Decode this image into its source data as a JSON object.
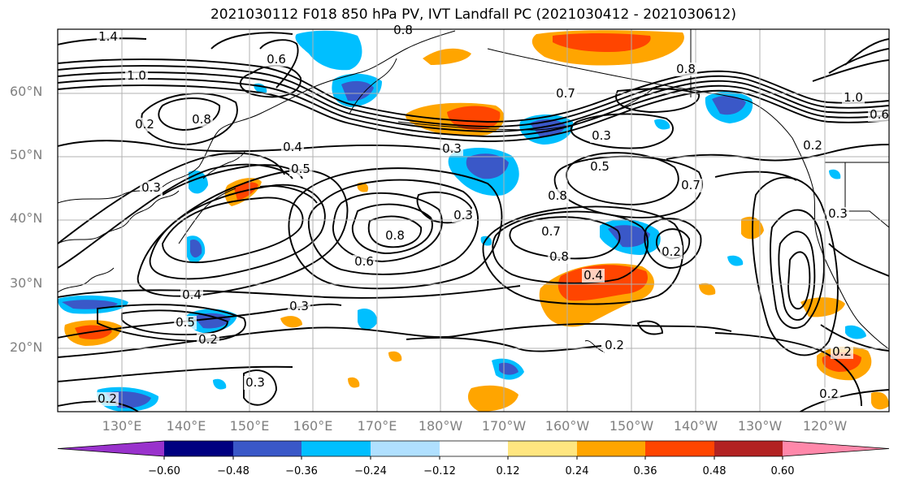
{
  "title": "2021030112 F018 850 hPa PV, IVT Landfall PC (2021030412 - 2021030612)",
  "lat_labels": [
    "60°N",
    "50°N",
    "40°N",
    "30°N",
    "20°N"
  ],
  "lon_labels": [
    "130°E",
    "140°E",
    "150°E",
    "160°E",
    "170°E",
    "180°W",
    "170°W",
    "160°W",
    "150°W",
    "140°W",
    "130°W",
    "120°W"
  ],
  "contour_labels": [
    "1.4",
    "1.0",
    "0.8",
    "0.2",
    "0.3",
    "0.4",
    "0.5",
    "0.6",
    "0.7",
    "0.8",
    "0.3",
    "0.2",
    "0.6",
    "0.4",
    "0.5",
    "0.2",
    "0.3",
    "0.8",
    "1.0",
    "0.3",
    "0.3",
    "0.6",
    "0.7",
    "0.8",
    "0.7",
    "0.8",
    "0.2",
    "0.4",
    "0.3",
    "0.3",
    "0.2",
    "0.2",
    "0.2",
    "0.2",
    "0.8",
    "0.5"
  ],
  "colorbar": {
    "ticks": [
      "−0.60",
      "−0.48",
      "−0.36",
      "−0.24",
      "−0.12",
      "0.12",
      "0.24",
      "0.36",
      "0.48",
      "0.60"
    ],
    "colors": [
      "#9932cc",
      "#000080",
      "#3a58c8",
      "#00bfff",
      "#b0e0ff",
      "#ffffff",
      "#ffe680",
      "#ffa500",
      "#ff4500",
      "#b22222",
      "#ff88aa"
    ]
  }
}
